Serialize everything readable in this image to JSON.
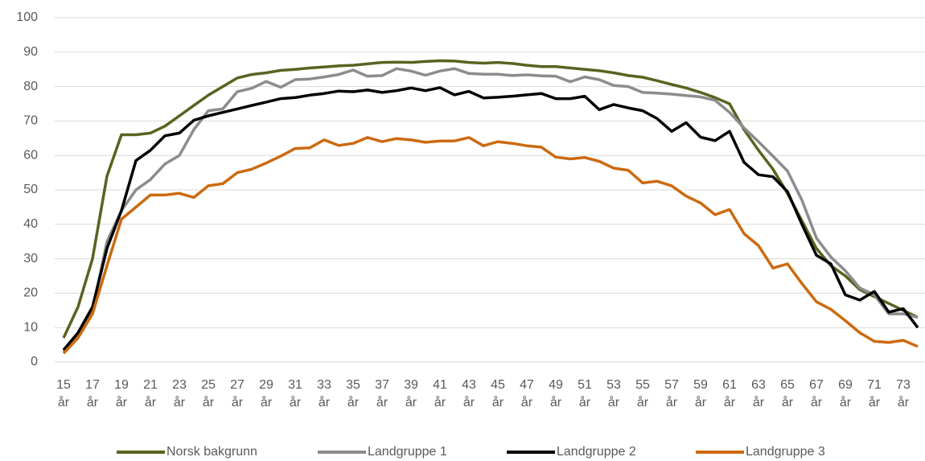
{
  "chart_data": {
    "type": "line",
    "categories": [
      "15 år",
      null,
      "17 år",
      null,
      "19 år",
      null,
      "21 år",
      null,
      "23 år",
      null,
      "25 år",
      null,
      "27 år",
      null,
      "29 år",
      null,
      "31 år",
      null,
      "33 år",
      null,
      "35 år",
      null,
      "37 år",
      null,
      "39 år",
      null,
      "41 år",
      null,
      "43 år",
      null,
      "45 år",
      null,
      "47 år",
      null,
      "49 år",
      null,
      "51 år",
      null,
      "53 år",
      null,
      "55 år",
      null,
      "57 år",
      null,
      "59 år",
      null,
      "61 år",
      null,
      "63 år",
      null,
      "65 år",
      null,
      "67 år",
      null,
      "69 år",
      null,
      "71 år",
      null,
      "73 år",
      null
    ],
    "series": [
      {
        "name": "Norsk bakgrunn",
        "color": "#5b6220",
        "values": [
          7,
          16,
          30,
          54,
          66,
          66,
          66.5,
          68.5,
          71.5,
          74.5,
          77.5,
          80,
          82.5,
          83.5,
          84,
          84.7,
          85,
          85.4,
          85.7,
          86,
          86.2,
          86.6,
          87,
          87.1,
          87,
          87.3,
          87.5,
          87.4,
          87,
          86.8,
          87,
          86.7,
          86.2,
          85.8,
          85.8,
          85.4,
          85,
          84.6,
          84,
          83.2,
          82.7,
          81.7,
          80.6,
          79.6,
          78.3,
          76.8,
          75,
          67.5,
          61.5,
          56,
          49,
          41,
          33,
          28,
          25,
          21,
          19,
          17,
          15,
          13
        ]
      },
      {
        "name": "Landgruppe 1",
        "color": "#8c8c8c",
        "values": [
          3,
          8,
          15,
          35,
          44,
          50,
          53,
          57.5,
          60,
          67.5,
          73,
          73.5,
          78.5,
          79.5,
          81.5,
          79.8,
          82,
          82.2,
          82.8,
          83.5,
          84.8,
          83,
          83.2,
          85.2,
          84.5,
          83.3,
          84.5,
          85.2,
          83.8,
          83.6,
          83.6,
          83.2,
          83.4,
          83.1,
          83,
          81.4,
          82.8,
          82,
          80.3,
          80,
          78.3,
          78.1,
          77.8,
          77.4,
          77,
          76,
          72.5,
          68,
          64,
          59.8,
          55.5,
          47,
          36,
          30.5,
          26.5,
          21.5,
          19.5,
          14,
          14,
          13
        ]
      },
      {
        "name": "Landgruppe 2",
        "color": "#000000",
        "values": [
          3.5,
          8.5,
          16,
          33,
          44,
          58.5,
          61.5,
          65.7,
          66.5,
          70.2,
          71.5,
          72.5,
          73.5,
          74.5,
          75.5,
          76.5,
          76.8,
          77.5,
          78,
          78.7,
          78.5,
          79,
          78.3,
          78.8,
          79.6,
          78.8,
          79.7,
          77.6,
          78.6,
          76.7,
          76.9,
          77.2,
          77.6,
          78,
          76.5,
          76.5,
          77.2,
          73.3,
          74.8,
          73.8,
          73,
          70.7,
          67,
          69.5,
          65.3,
          64.3,
          67,
          58,
          54.4,
          53.8,
          49.5,
          40,
          31,
          28.5,
          19.5,
          18,
          20.5,
          14.5,
          15.5,
          10
        ]
      },
      {
        "name": "Landgruppe 3",
        "color": "#cc6a10",
        "values": [
          2.5,
          7,
          14,
          28,
          41.5,
          45,
          48.5,
          48.5,
          49,
          47.8,
          51.2,
          51.8,
          55,
          56,
          57.8,
          59.8,
          62,
          62.2,
          64.5,
          62.9,
          63.5,
          65.2,
          64,
          64.9,
          64.5,
          63.8,
          64.2,
          64.2,
          65.2,
          62.8,
          64,
          63.5,
          62.8,
          62.4,
          59.5,
          59,
          59.4,
          58.3,
          56.3,
          55.7,
          52,
          52.5,
          51.2,
          48.2,
          46.2,
          42.8,
          44.3,
          37.3,
          33.8,
          27.3,
          28.5,
          22.8,
          17.5,
          15.3,
          12,
          8.5,
          6,
          5.7,
          6.3,
          4.5
        ]
      }
    ],
    "ylim": [
      0,
      100
    ],
    "yticks": [
      0,
      10,
      20,
      30,
      40,
      50,
      60,
      70,
      80,
      90,
      100
    ],
    "grid": true,
    "legend": "bottom"
  }
}
